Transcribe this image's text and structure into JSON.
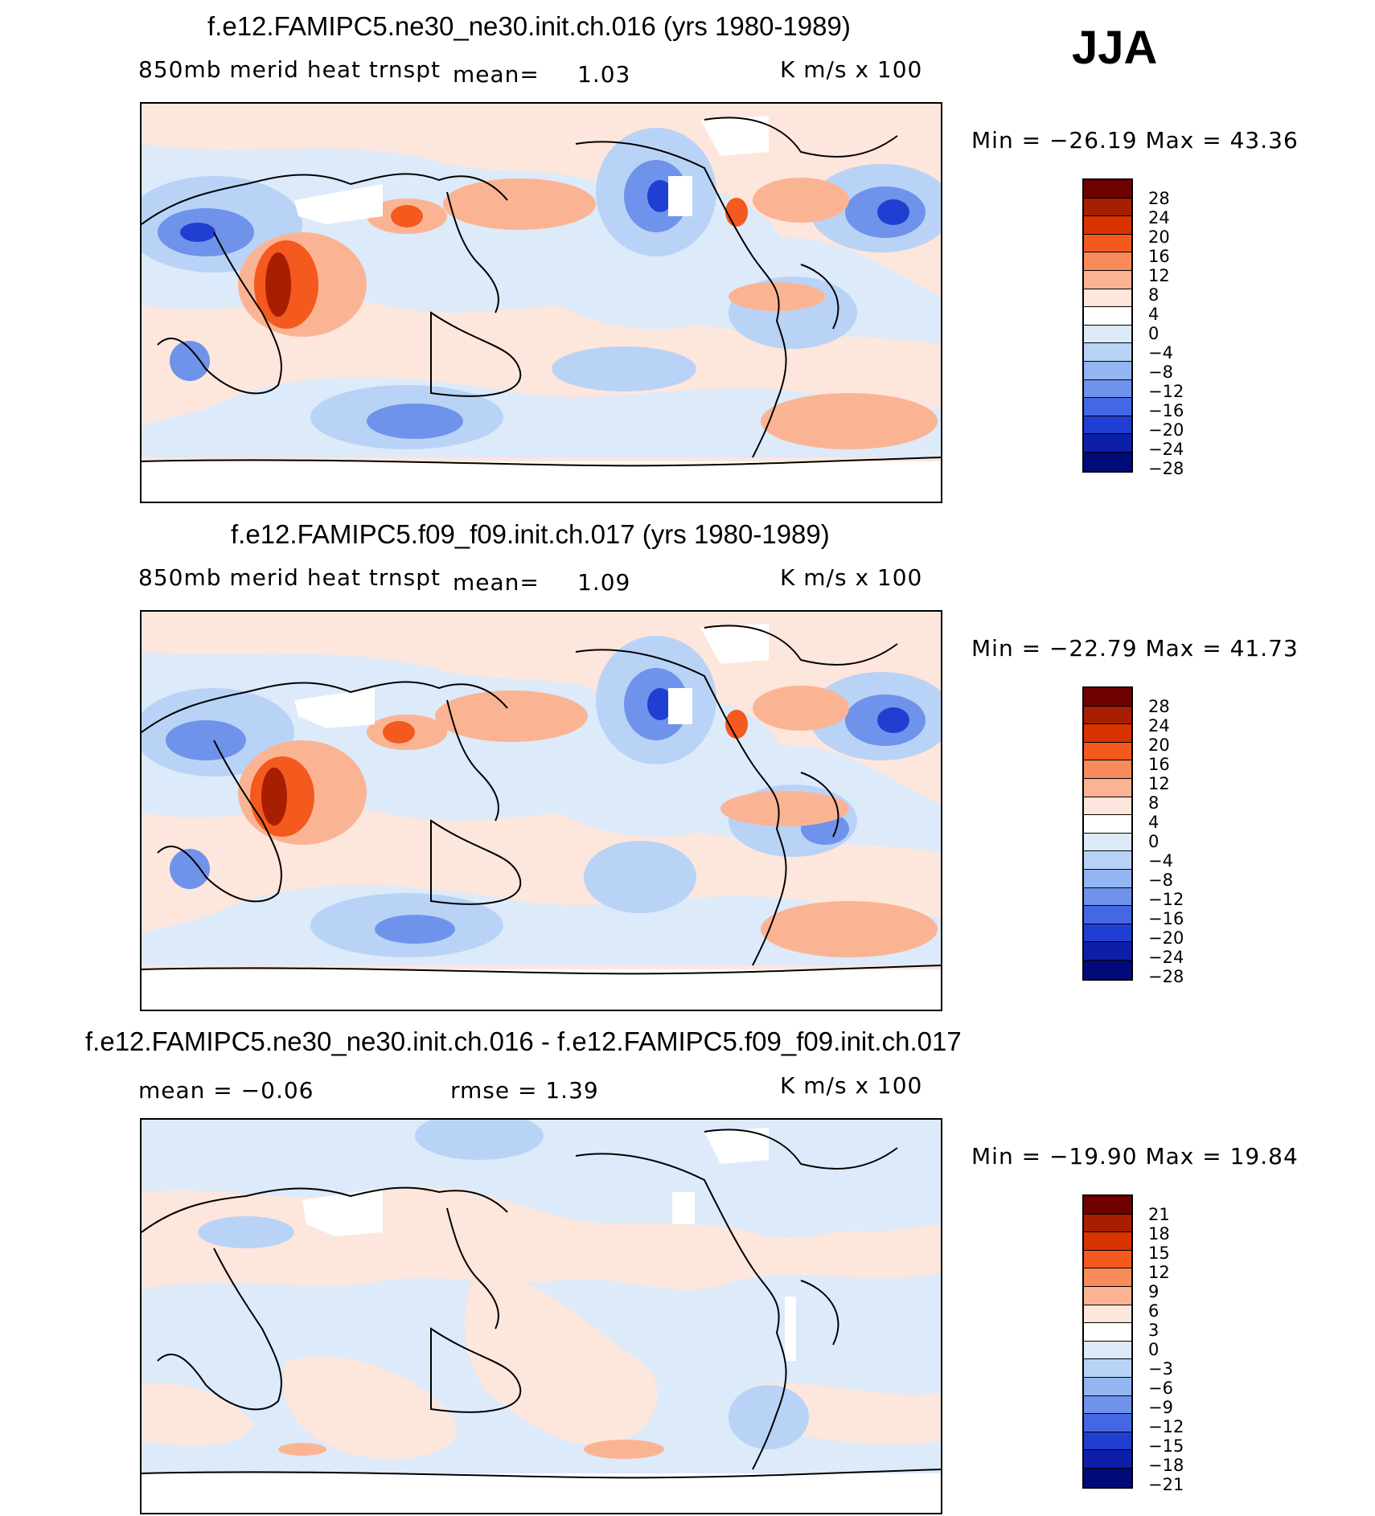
{
  "season": "JJA",
  "panels": [
    {
      "title": "f.e12.FAMIPC5.ne30_ne30.init.ch.016 (yrs 1980-1989)",
      "left": "850mb merid heat trnspt",
      "mean_label": "mean=",
      "mean_value": "1.03",
      "units": "K m/s x 100",
      "minmax": "Min = −26.19 Max = 43.36",
      "levels": [
        "28",
        "24",
        "20",
        "16",
        "12",
        "8",
        "4",
        "0",
        "−4",
        "−8",
        "−12",
        "−16",
        "−20",
        "−24",
        "−28"
      ]
    },
    {
      "title": "f.e12.FAMIPC5.f09_f09.init.ch.017 (yrs 1980-1989)",
      "left": "850mb merid heat trnspt",
      "mean_label": "mean=",
      "mean_value": "1.09",
      "units": "K m/s x 100",
      "minmax": "Min = −22.79 Max = 41.73",
      "levels": [
        "28",
        "24",
        "20",
        "16",
        "12",
        "8",
        "4",
        "0",
        "−4",
        "−8",
        "−12",
        "−16",
        "−20",
        "−24",
        "−28"
      ]
    },
    {
      "title": "f.e12.FAMIPC5.ne30_ne30.init.ch.016 - f.e12.FAMIPC5.f09_f09.init.ch.017",
      "left": "mean = −0.06",
      "rmse": "rmse = 1.39",
      "units": "K m/s x 100",
      "minmax": "Min = −19.90 Max = 19.84",
      "levels": [
        "21",
        "18",
        "15",
        "12",
        "9",
        "6",
        "3",
        "0",
        "−3",
        "−6",
        "−9",
        "−12",
        "−15",
        "−18",
        "−21"
      ]
    }
  ],
  "colors": {
    "scale": [
      "#6e0000",
      "#a81e00",
      "#d93300",
      "#f4591e",
      "#f98a5c",
      "#fbb493",
      "#fde6dc",
      "#ffffff",
      "#dceafa",
      "#b9d3f7",
      "#93b6f2",
      "#6f93ea",
      "#4468e4",
      "#1f3fd2",
      "#0d1fa8",
      "#000a78"
    ],
    "land_outline": "#000000"
  }
}
